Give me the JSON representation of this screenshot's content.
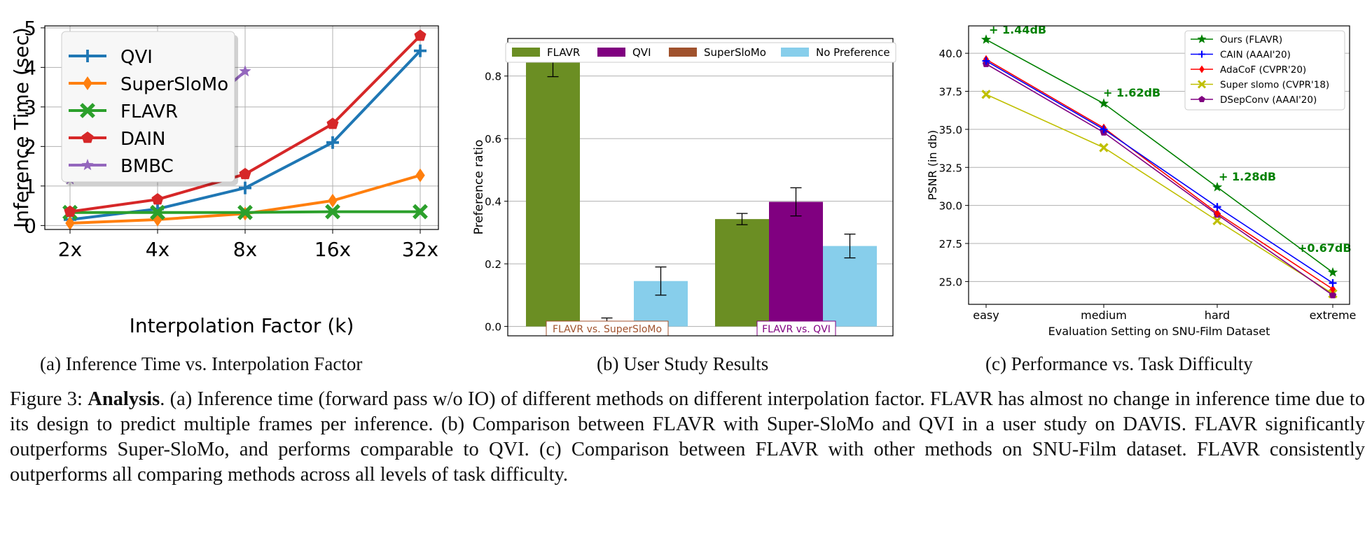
{
  "colors": {
    "qvi_line": "#1f77b4",
    "superslomo_line": "#ff7f0e",
    "flavr_line": "#2ca02c",
    "dain_line": "#d62728",
    "bmbc_line": "#9467bd",
    "flavr_bar": "#6b8e23",
    "qvi_bar": "#800080",
    "superslomo_bar": "#a0522d",
    "nopref_bar": "#87ceeb",
    "ours": "#008000",
    "cain": "#0000ff",
    "adacof": "#ff0000",
    "superslomo_c": "#bfbf00",
    "dsepconv": "#800080"
  },
  "chart_data": [
    {
      "type": "line",
      "xlabel": "Interpolation Factor (k)",
      "ylabel": "Inference Time (sec)",
      "categories": [
        "2x",
        "4x",
        "8x",
        "16x",
        "32x"
      ],
      "ylim": [
        -0.1,
        5.05
      ],
      "yticks": [
        0,
        1,
        2,
        3,
        4,
        5
      ],
      "grid": true,
      "legend_position": "top-left",
      "series": [
        {
          "name": "QVI",
          "marker": "plus",
          "values": [
            0.15,
            0.42,
            0.95,
            2.1,
            4.42
          ]
        },
        {
          "name": "SuperSloMo",
          "marker": "diamond",
          "values": [
            0.06,
            0.15,
            0.3,
            0.63,
            1.27
          ]
        },
        {
          "name": "FLAVR",
          "marker": "x",
          "values": [
            0.33,
            0.33,
            0.33,
            0.35,
            0.35
          ]
        },
        {
          "name": "DAIN",
          "marker": "pentagon",
          "values": [
            0.35,
            0.66,
            1.3,
            2.57,
            4.8
          ]
        },
        {
          "name": "BMBC",
          "marker": "star",
          "values": [
            1.17,
            2.0,
            3.9,
            null,
            null
          ]
        }
      ]
    },
    {
      "type": "bar",
      "ylabel": "Preference ratio",
      "groups": [
        "FLAVR vs. SuperSloMo",
        "FLAVR vs. QVI"
      ],
      "ylim": [
        -0.03,
        0.92
      ],
      "yticks": [
        "0.0",
        "0.2",
        "0.4",
        "0.6",
        "0.8"
      ],
      "grid": true,
      "legend_position": "top",
      "legend": [
        "FLAVR",
        "QVI",
        "SuperSloMo",
        "No Preference"
      ],
      "bars": [
        {
          "group": 0,
          "name": "FLAVR",
          "value": 0.843,
          "err": 0.045
        },
        {
          "group": 0,
          "name": "SuperSloMo",
          "value": 0.012,
          "err": 0.015
        },
        {
          "group": 0,
          "name": "No Preference",
          "value": 0.145,
          "err": 0.045
        },
        {
          "group": 1,
          "name": "FLAVR",
          "value": 0.343,
          "err": 0.018
        },
        {
          "group": 1,
          "name": "QVI",
          "value": 0.398,
          "err": 0.045
        },
        {
          "group": 1,
          "name": "No Preference",
          "value": 0.257,
          "err": 0.038
        }
      ]
    },
    {
      "type": "line",
      "xlabel": "Evaluation Setting on SNU-Film Dataset",
      "ylabel": "PSNR (in db)",
      "categories": [
        "easy",
        "medium",
        "hard",
        "extreme"
      ],
      "ylim": [
        23.5,
        41.8
      ],
      "yticks": [
        "25.0",
        "27.5",
        "30.0",
        "32.5",
        "35.0",
        "37.5",
        "40.0"
      ],
      "grid": true,
      "legend_position": "top-right",
      "series": [
        {
          "name": "Ours (FLAVR)",
          "marker": "star",
          "values": [
            40.9,
            36.7,
            31.2,
            25.6
          ]
        },
        {
          "name": "CAIN (AAAI'20)",
          "marker": "plus",
          "values": [
            39.5,
            35.0,
            29.9,
            24.9
          ]
        },
        {
          "name": "AdaCoF (CVPR'20)",
          "marker": "diamond",
          "values": [
            39.6,
            35.1,
            29.5,
            24.5
          ]
        },
        {
          "name": "Super slomo (CVPR'18)",
          "marker": "x",
          "values": [
            37.3,
            33.8,
            29.0,
            24.2
          ]
        },
        {
          "name": "DSepConv (AAAI'20)",
          "marker": "pentagon",
          "values": [
            39.3,
            34.8,
            29.4,
            24.1
          ]
        }
      ],
      "annotations": [
        "+ 1.44dB",
        "+ 1.62dB",
        "+ 1.28dB",
        "+0.67dB"
      ]
    }
  ],
  "subcaptions": {
    "a": "(a) Inference Time vs. Interpolation Factor",
    "b": "(b) User Study Results",
    "c": "(c) Performance vs. Task Difficulty"
  },
  "caption": {
    "prefix": "Figure 3: ",
    "bold": "Analysis",
    "body": ". (a) Inference time (forward pass w/o IO) of different methods on different interpolation factor. FLAVR has almost no change in inference time due to its design to predict multiple frames per inference. (b) Comparison between FLAVR with Super-SloMo and QVI in a user study on DAVIS. FLAVR significantly outperforms Super-SloMo, and performs comparable to QVI. (c) Comparison between FLAVR with other methods on SNU-Film dataset. FLAVR consistently outperforms all comparing methods across all levels of task difficulty."
  }
}
